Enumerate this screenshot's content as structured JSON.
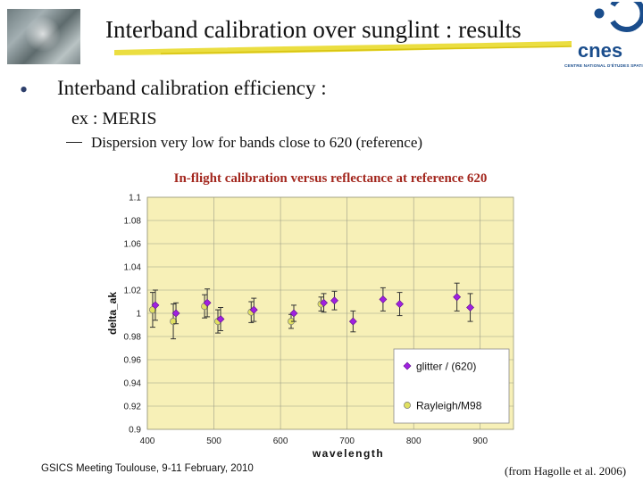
{
  "slide": {
    "title": "Interband calibration over sunglint : results",
    "bullet": "Interband calibration efficiency :",
    "sub1": "ex : MERIS",
    "sub2": "Dispersion very low for bands close to 620 (reference)",
    "chart_caption": "In-flight calibration versus reflectance at reference 620",
    "footer_left": "GSICS Meeting Toulouse, 9-11 February, 2010",
    "footer_right": "(from Hagolle et al. 2006)"
  },
  "logo": {
    "name": "cnes",
    "text": "CENTRE NATIONAL D'ÉTUDES SPATIALES",
    "color": "#1a4d8c"
  },
  "colors": {
    "title_underline": "#e8d820",
    "plot_bg": "#f7f0b7",
    "glitter": "#a020e0",
    "rayleigh": "#e0e060",
    "caption": "#a3271e"
  },
  "chart_data": {
    "type": "scatter",
    "xlabel": "wavelength",
    "ylabel": "delta_ak",
    "xlim": [
      400,
      950
    ],
    "ylim": [
      0.9,
      1.1
    ],
    "xticks": [
      400,
      500,
      600,
      700,
      800,
      900
    ],
    "yticks": [
      0.9,
      0.92,
      0.94,
      0.96,
      0.98,
      1,
      1.02,
      1.04,
      1.06,
      1.08,
      1.1
    ],
    "grid": true,
    "legend_position": "bottom-right",
    "series": [
      {
        "name": "glitter / (620)",
        "marker": "diamond",
        "color": "#a020e0",
        "points": [
          {
            "x": 412,
            "y": 1.007,
            "err": 0.013
          },
          {
            "x": 443,
            "y": 1.0,
            "err": 0.009
          },
          {
            "x": 490,
            "y": 1.009,
            "err": 0.012
          },
          {
            "x": 510,
            "y": 0.995,
            "err": 0.01
          },
          {
            "x": 560,
            "y": 1.003,
            "err": 0.01
          },
          {
            "x": 620,
            "y": 1.0,
            "err": 0.007
          },
          {
            "x": 665,
            "y": 1.009,
            "err": 0.008
          },
          {
            "x": 681,
            "y": 1.011,
            "err": 0.008
          },
          {
            "x": 709,
            "y": 0.993,
            "err": 0.009
          },
          {
            "x": 754,
            "y": 1.012,
            "err": 0.01
          },
          {
            "x": 779,
            "y": 1.008,
            "err": 0.01
          },
          {
            "x": 865,
            "y": 1.014,
            "err": 0.012
          },
          {
            "x": 885,
            "y": 1.005,
            "err": 0.012
          }
        ]
      },
      {
        "name": "Rayleigh/M98",
        "marker": "circle",
        "color": "#e0e060",
        "points": [
          {
            "x": 412,
            "y": 1.003,
            "err": 0.015
          },
          {
            "x": 443,
            "y": 0.993,
            "err": 0.015
          },
          {
            "x": 490,
            "y": 1.006,
            "err": 0.01
          },
          {
            "x": 510,
            "y": 0.993,
            "err": 0.01
          },
          {
            "x": 560,
            "y": 1.001,
            "err": 0.009
          },
          {
            "x": 620,
            "y": 0.993,
            "err": 0.006
          },
          {
            "x": 665,
            "y": 1.008,
            "err": 0.006
          }
        ]
      }
    ]
  }
}
